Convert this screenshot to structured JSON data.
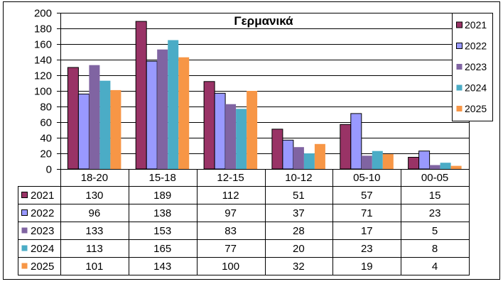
{
  "chart_data": {
    "type": "bar",
    "title": "Γερμανικά",
    "categories": [
      "18-20",
      "15-18",
      "12-15",
      "10-12",
      "05-10",
      "00-05"
    ],
    "series": [
      {
        "name": "2021",
        "values": [
          130,
          189,
          112,
          51,
          57,
          15
        ],
        "color": "#993366",
        "outline": "#000000"
      },
      {
        "name": "2022",
        "values": [
          96,
          138,
          97,
          37,
          71,
          23
        ],
        "color": "#9999FF",
        "outline": "#000000"
      },
      {
        "name": "2023",
        "values": [
          133,
          153,
          83,
          28,
          17,
          5
        ],
        "color": "#8064A2"
      },
      {
        "name": "2024",
        "values": [
          113,
          165,
          77,
          20,
          23,
          8
        ],
        "color": "#4BACC6"
      },
      {
        "name": "2025",
        "values": [
          101,
          143,
          100,
          32,
          19,
          4
        ],
        "color": "#F79646"
      }
    ],
    "ylim": [
      0,
      200
    ],
    "yticks": [
      0,
      20,
      40,
      60,
      80,
      100,
      120,
      140,
      160,
      180,
      200
    ],
    "grid": true,
    "legend": "top-right",
    "data_table": true
  }
}
